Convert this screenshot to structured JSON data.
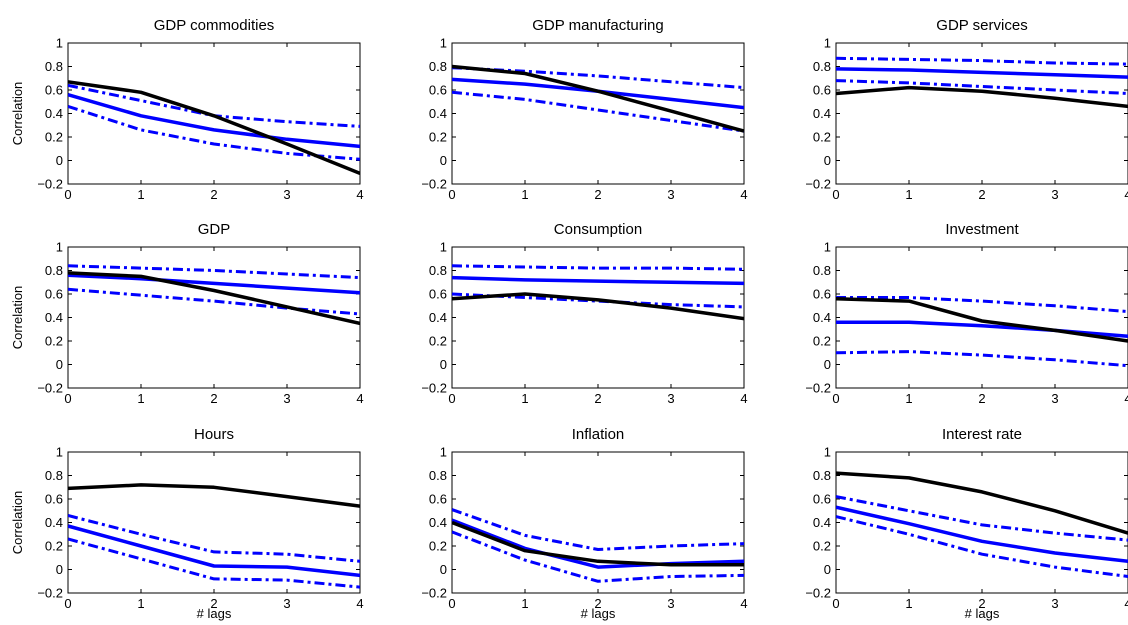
{
  "chart_data": [
    {
      "type": "line",
      "title": "GDP commodities",
      "xlabel": "",
      "ylabel": "Correlation",
      "xlim": [
        0,
        4
      ],
      "ylim": [
        -0.2,
        1
      ],
      "x": [
        0,
        1,
        2,
        3,
        4
      ],
      "x_ticks": [
        "0",
        "1",
        "2",
        "3",
        "4"
      ],
      "y_ticks": [
        "−0.2",
        "0",
        "0.2",
        "0.4",
        "0.6",
        "0.8",
        "1"
      ],
      "series": [
        {
          "style": "data",
          "color": "#000000",
          "values": [
            0.67,
            0.58,
            0.38,
            0.14,
            -0.11
          ]
        },
        {
          "style": "model",
          "color": "#0000ff",
          "values": [
            0.56,
            0.38,
            0.26,
            0.18,
            0.12
          ]
        },
        {
          "style": "band-upper",
          "color": "#0000ff",
          "values": [
            0.64,
            0.51,
            0.38,
            0.33,
            0.29
          ]
        },
        {
          "style": "band-lower",
          "color": "#0000ff",
          "values": [
            0.46,
            0.26,
            0.14,
            0.06,
            0.01
          ]
        }
      ]
    },
    {
      "type": "line",
      "title": "GDP manufacturing",
      "xlabel": "",
      "ylabel": "",
      "xlim": [
        0,
        4
      ],
      "ylim": [
        -0.2,
        1
      ],
      "x": [
        0,
        1,
        2,
        3,
        4
      ],
      "x_ticks": [
        "0",
        "1",
        "2",
        "3",
        "4"
      ],
      "y_ticks": [
        "−0.2",
        "0",
        "0.2",
        "0.4",
        "0.6",
        "0.8",
        "1"
      ],
      "series": [
        {
          "style": "data",
          "color": "#000000",
          "values": [
            0.8,
            0.74,
            0.59,
            0.42,
            0.25
          ]
        },
        {
          "style": "model",
          "color": "#0000ff",
          "values": [
            0.69,
            0.65,
            0.59,
            0.52,
            0.45
          ]
        },
        {
          "style": "band-upper",
          "color": "#0000ff",
          "values": [
            0.79,
            0.76,
            0.72,
            0.67,
            0.62
          ]
        },
        {
          "style": "band-lower",
          "color": "#0000ff",
          "values": [
            0.58,
            0.52,
            0.43,
            0.34,
            0.25
          ]
        }
      ]
    },
    {
      "type": "line",
      "title": "GDP services",
      "xlabel": "",
      "ylabel": "",
      "xlim": [
        0,
        4
      ],
      "ylim": [
        -0.2,
        1
      ],
      "x": [
        0,
        1,
        2,
        3,
        4
      ],
      "x_ticks": [
        "0",
        "1",
        "2",
        "3",
        "4"
      ],
      "y_ticks": [
        "−0.2",
        "0",
        "0.2",
        "0.4",
        "0.6",
        "0.8",
        "1"
      ],
      "series": [
        {
          "style": "data",
          "color": "#000000",
          "values": [
            0.57,
            0.62,
            0.59,
            0.53,
            0.46
          ]
        },
        {
          "style": "model",
          "color": "#0000ff",
          "values": [
            0.78,
            0.77,
            0.75,
            0.73,
            0.71
          ]
        },
        {
          "style": "band-upper",
          "color": "#0000ff",
          "values": [
            0.87,
            0.86,
            0.85,
            0.83,
            0.82
          ]
        },
        {
          "style": "band-lower",
          "color": "#0000ff",
          "values": [
            0.68,
            0.66,
            0.63,
            0.6,
            0.57
          ]
        }
      ]
    },
    {
      "type": "line",
      "title": "GDP",
      "xlabel": "",
      "ylabel": "Correlation",
      "xlim": [
        0,
        4
      ],
      "ylim": [
        -0.2,
        1
      ],
      "x": [
        0,
        1,
        2,
        3,
        4
      ],
      "x_ticks": [
        "0",
        "1",
        "2",
        "3",
        "4"
      ],
      "y_ticks": [
        "−0.2",
        "0",
        "0.2",
        "0.4",
        "0.6",
        "0.8",
        "1"
      ],
      "series": [
        {
          "style": "data",
          "color": "#000000",
          "values": [
            0.78,
            0.75,
            0.63,
            0.49,
            0.35
          ]
        },
        {
          "style": "model",
          "color": "#0000ff",
          "values": [
            0.76,
            0.73,
            0.69,
            0.65,
            0.61
          ]
        },
        {
          "style": "band-upper",
          "color": "#0000ff",
          "values": [
            0.84,
            0.82,
            0.8,
            0.77,
            0.74
          ]
        },
        {
          "style": "band-lower",
          "color": "#0000ff",
          "values": [
            0.64,
            0.59,
            0.54,
            0.48,
            0.43
          ]
        }
      ]
    },
    {
      "type": "line",
      "title": "Consumption",
      "xlabel": "",
      "ylabel": "",
      "xlim": [
        0,
        4
      ],
      "ylim": [
        -0.2,
        1
      ],
      "x": [
        0,
        1,
        2,
        3,
        4
      ],
      "x_ticks": [
        "0",
        "1",
        "2",
        "3",
        "4"
      ],
      "y_ticks": [
        "−0.2",
        "0",
        "0.2",
        "0.4",
        "0.6",
        "0.8",
        "1"
      ],
      "series": [
        {
          "style": "data",
          "color": "#000000",
          "values": [
            0.56,
            0.6,
            0.55,
            0.48,
            0.39
          ]
        },
        {
          "style": "model",
          "color": "#0000ff",
          "values": [
            0.74,
            0.72,
            0.71,
            0.7,
            0.69
          ]
        },
        {
          "style": "band-upper",
          "color": "#0000ff",
          "values": [
            0.84,
            0.83,
            0.82,
            0.82,
            0.81
          ]
        },
        {
          "style": "band-lower",
          "color": "#0000ff",
          "values": [
            0.6,
            0.57,
            0.54,
            0.51,
            0.49
          ]
        }
      ]
    },
    {
      "type": "line",
      "title": "Investment",
      "xlabel": "",
      "ylabel": "",
      "xlim": [
        0,
        4
      ],
      "ylim": [
        -0.2,
        1
      ],
      "x": [
        0,
        1,
        2,
        3,
        4
      ],
      "x_ticks": [
        "0",
        "1",
        "2",
        "3",
        "4"
      ],
      "y_ticks": [
        "−0.2",
        "0",
        "0.2",
        "0.4",
        "0.6",
        "0.8",
        "1"
      ],
      "series": [
        {
          "style": "data",
          "color": "#000000",
          "values": [
            0.56,
            0.54,
            0.37,
            0.29,
            0.2
          ]
        },
        {
          "style": "model",
          "color": "#0000ff",
          "values": [
            0.36,
            0.36,
            0.33,
            0.29,
            0.24
          ]
        },
        {
          "style": "band-upper",
          "color": "#0000ff",
          "values": [
            0.57,
            0.57,
            0.54,
            0.5,
            0.45
          ]
        },
        {
          "style": "band-lower",
          "color": "#0000ff",
          "values": [
            0.1,
            0.11,
            0.08,
            0.04,
            -0.01
          ]
        }
      ]
    },
    {
      "type": "line",
      "title": "Hours",
      "xlabel": "# lags",
      "ylabel": "Correlation",
      "xlim": [
        0,
        4
      ],
      "ylim": [
        -0.2,
        1
      ],
      "x": [
        0,
        1,
        2,
        3,
        4
      ],
      "x_ticks": [
        "0",
        "1",
        "2",
        "3",
        "4"
      ],
      "y_ticks": [
        "−0.2",
        "0",
        "0.2",
        "0.4",
        "0.6",
        "0.8",
        "1"
      ],
      "series": [
        {
          "style": "data",
          "color": "#000000",
          "values": [
            0.69,
            0.72,
            0.7,
            0.62,
            0.54
          ]
        },
        {
          "style": "model",
          "color": "#0000ff",
          "values": [
            0.37,
            0.2,
            0.03,
            0.02,
            -0.05
          ]
        },
        {
          "style": "band-upper",
          "color": "#0000ff",
          "values": [
            0.46,
            0.3,
            0.15,
            0.13,
            0.07
          ]
        },
        {
          "style": "band-lower",
          "color": "#0000ff",
          "values": [
            0.26,
            0.09,
            -0.08,
            -0.09,
            -0.15
          ]
        }
      ]
    },
    {
      "type": "line",
      "title": "Inflation",
      "xlabel": "# lags",
      "ylabel": "",
      "xlim": [
        0,
        4
      ],
      "ylim": [
        -0.2,
        1
      ],
      "x": [
        0,
        1,
        2,
        3,
        4
      ],
      "x_ticks": [
        "0",
        "1",
        "2",
        "3",
        "4"
      ],
      "y_ticks": [
        "−0.2",
        "0",
        "0.2",
        "0.4",
        "0.6",
        "0.8",
        "1"
      ],
      "series": [
        {
          "style": "data",
          "color": "#000000",
          "values": [
            0.4,
            0.16,
            0.07,
            0.04,
            0.04
          ]
        },
        {
          "style": "model",
          "color": "#0000ff",
          "values": [
            0.42,
            0.18,
            0.02,
            0.05,
            0.07
          ]
        },
        {
          "style": "band-upper",
          "color": "#0000ff",
          "values": [
            0.51,
            0.29,
            0.17,
            0.2,
            0.22
          ]
        },
        {
          "style": "band-lower",
          "color": "#0000ff",
          "values": [
            0.32,
            0.08,
            -0.1,
            -0.06,
            -0.05
          ]
        }
      ]
    },
    {
      "type": "line",
      "title": "Interest rate",
      "xlabel": "# lags",
      "ylabel": "",
      "xlim": [
        0,
        4
      ],
      "ylim": [
        -0.2,
        1
      ],
      "x": [
        0,
        1,
        2,
        3,
        4
      ],
      "x_ticks": [
        "0",
        "1",
        "2",
        "3",
        "4"
      ],
      "y_ticks": [
        "−0.2",
        "0",
        "0.2",
        "0.4",
        "0.6",
        "0.8",
        "1"
      ],
      "series": [
        {
          "style": "data",
          "color": "#000000",
          "values": [
            0.82,
            0.78,
            0.66,
            0.5,
            0.31
          ]
        },
        {
          "style": "model",
          "color": "#0000ff",
          "values": [
            0.53,
            0.39,
            0.24,
            0.14,
            0.07
          ]
        },
        {
          "style": "band-upper",
          "color": "#0000ff",
          "values": [
            0.62,
            0.5,
            0.38,
            0.31,
            0.25
          ]
        },
        {
          "style": "band-lower",
          "color": "#0000ff",
          "values": [
            0.45,
            0.3,
            0.13,
            0.02,
            -0.06
          ]
        }
      ]
    }
  ]
}
